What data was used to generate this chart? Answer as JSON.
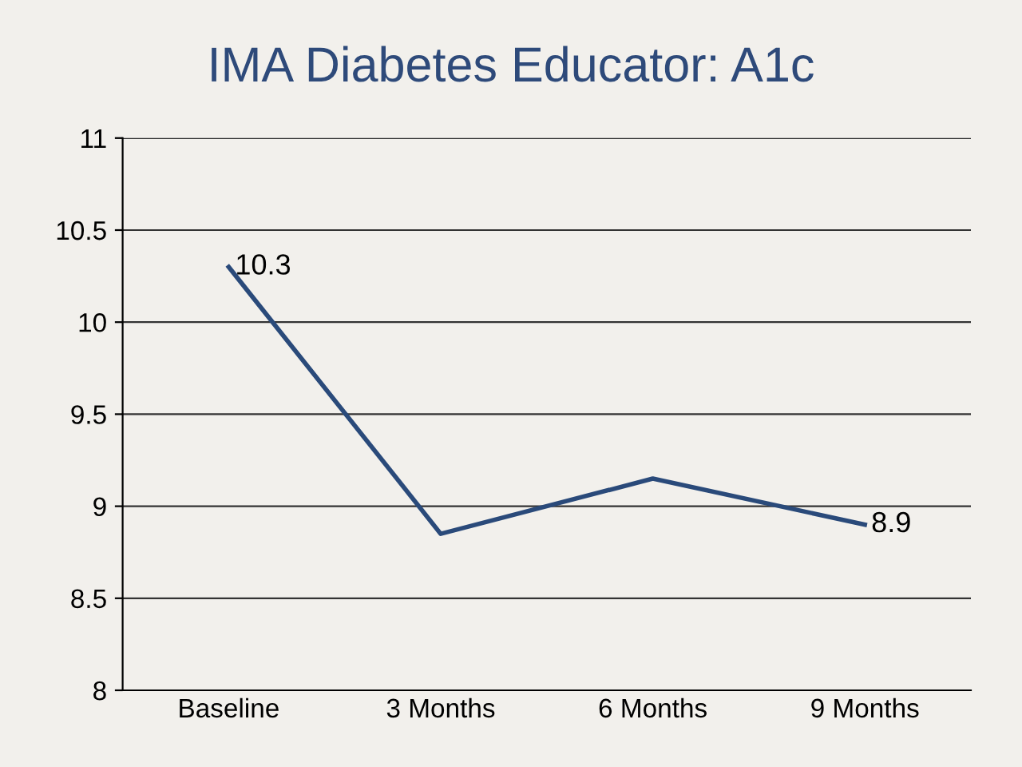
{
  "chart_data": {
    "type": "line",
    "title": "IMA Diabetes Educator: A1c",
    "categories": [
      "Baseline",
      "3 Months",
      "6 Months",
      "9 Months"
    ],
    "series": [
      {
        "color": "#2a4a7a",
        "values": [
          10.3,
          8.85,
          9.15,
          8.9
        ],
        "value_labels": [
          "10.3",
          null,
          null,
          "8.9"
        ]
      }
    ],
    "ylim": [
      8,
      11
    ],
    "yticks": [
      8,
      8.5,
      9,
      9.5,
      10,
      10.5,
      11
    ],
    "grid": "y",
    "legend": false,
    "marker": "none",
    "line_style": "solid"
  }
}
